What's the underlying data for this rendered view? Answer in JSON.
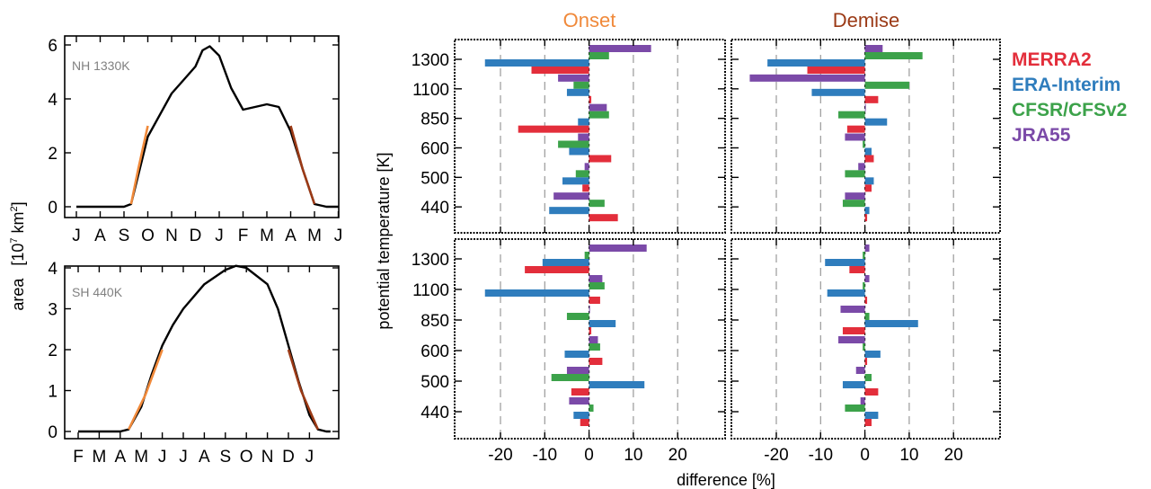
{
  "chart_data": [
    {
      "type": "line",
      "panel": "top-left",
      "annotation": "NH 1330K",
      "xticks": [
        "J",
        "A",
        "S",
        "O",
        "N",
        "D",
        "J",
        "F",
        "M",
        "A",
        "M",
        "J"
      ],
      "ylim": [
        0,
        6
      ],
      "yticks": [
        0,
        2,
        4,
        6
      ],
      "series": [
        {
          "role": "area",
          "color": "#000000",
          "x": [
            0,
            1,
            2,
            2.3,
            3,
            4,
            4.5,
            5,
            5.3,
            5.6,
            6,
            6.5,
            7,
            7.5,
            8,
            8.5,
            9,
            9.5,
            10,
            10.5,
            11
          ],
          "y": [
            0,
            0,
            0,
            0.1,
            2.6,
            4.2,
            4.7,
            5.2,
            5.8,
            5.95,
            5.6,
            4.4,
            3.6,
            3.7,
            3.8,
            3.7,
            2.8,
            1.4,
            0.1,
            0,
            0
          ]
        },
        {
          "role": "onset",
          "color": "#f0893a",
          "x": [
            2.3,
            2.6,
            3
          ],
          "y": [
            0.1,
            1.4,
            3.0
          ]
        },
        {
          "role": "demise",
          "color": "#9b3a16",
          "x": [
            9,
            9.5,
            10
          ],
          "y": [
            3.0,
            1.4,
            0.1
          ]
        }
      ]
    },
    {
      "type": "line",
      "panel": "bottom-left",
      "annotation": "SH 440K",
      "xticks": [
        "F",
        "M",
        "A",
        "M",
        "J",
        "J",
        "A",
        "S",
        "O",
        "N",
        "D",
        "J"
      ],
      "ylim": [
        0,
        4
      ],
      "yticks": [
        0,
        1,
        2,
        3,
        4
      ],
      "series": [
        {
          "role": "area",
          "color": "#000000",
          "x": [
            0,
            1,
            2,
            2.4,
            3,
            3.5,
            4,
            4.5,
            5,
            6,
            7,
            7.5,
            8,
            9,
            9.5,
            10,
            10.5,
            11,
            11.4,
            11.8,
            12
          ],
          "y": [
            0,
            0,
            0,
            0.05,
            0.6,
            1.4,
            2.1,
            2.6,
            3.0,
            3.6,
            3.95,
            4.05,
            4.0,
            3.6,
            3.0,
            2.1,
            1.2,
            0.4,
            0.05,
            0,
            0
          ]
        },
        {
          "role": "onset",
          "color": "#f0893a",
          "x": [
            2.4,
            3.2,
            4
          ],
          "y": [
            0.05,
            0.9,
            2.0
          ]
        },
        {
          "role": "demise",
          "color": "#9b3a16",
          "x": [
            10,
            10.6,
            11.4
          ],
          "y": [
            2.0,
            1.0,
            0.05
          ]
        }
      ]
    },
    {
      "type": "bar",
      "orientation": "horizontal",
      "grid": [
        {
          "panel": "onset-top",
          "values": {
            "1300": [
              -13,
              -23.5,
              4.5,
              14
            ],
            "1100": [
              0.5,
              -5,
              -3.5,
              -7
            ],
            "850": [
              -16,
              -2.5,
              4.5,
              4
            ],
            "600": [
              5,
              -4.5,
              -7,
              -2.5
            ],
            "500": [
              -1.5,
              -6,
              -3,
              -1
            ],
            "440": [
              6.5,
              -9,
              3.5,
              -8
            ]
          }
        },
        {
          "panel": "demise-top",
          "values": {
            "1300": [
              -13,
              -22,
              13,
              4
            ],
            "1100": [
              3,
              -12,
              10,
              -26
            ],
            "850": [
              -4,
              5,
              -6,
              0
            ],
            "600": [
              2,
              1.5,
              -0.5,
              -4.5
            ],
            "500": [
              1.5,
              2,
              -4.5,
              -1.5
            ],
            "440": [
              0.5,
              1,
              -5,
              -4.5
            ]
          }
        },
        {
          "panel": "onset-bottom",
          "values": {
            "1300": [
              -14.5,
              -10.5,
              -1,
              13
            ],
            "1100": [
              2.5,
              -23.5,
              3.5,
              3
            ],
            "850": [
              0.5,
              6,
              -5,
              0
            ],
            "600": [
              3,
              -5.5,
              2.5,
              2
            ],
            "500": [
              -4,
              12.5,
              -8.5,
              -5
            ],
            "440": [
              -2,
              -3.5,
              1,
              -4.5
            ]
          }
        },
        {
          "panel": "demise-bottom",
          "values": {
            "1300": [
              -3.5,
              -9,
              -0.5,
              1
            ],
            "1100": [
              0.5,
              -8.5,
              -0.5,
              1
            ],
            "850": [
              -5,
              12,
              1,
              -5.5
            ],
            "600": [
              0.5,
              3.5,
              -0.5,
              -6
            ],
            "500": [
              3,
              -5,
              1.5,
              -2
            ],
            "440": [
              1.5,
              3,
              -4.5,
              -1
            ]
          }
        }
      ],
      "series_order": [
        "MERRA2",
        "ERA-Interim",
        "CFSR/CFSv2",
        "JRA55"
      ]
    }
  ],
  "labels": {
    "onset_title": "Onset",
    "demise_title": "Demise",
    "left_ylabel": "area",
    "left_yunit": "[10",
    "left_yunit_exp1": "7",
    "left_yunit_mid": " km",
    "left_yunit_exp2": "2",
    "left_yunit_end": "]",
    "right_ylabel": "potential temperature [K]",
    "xlabel": "difference [%]",
    "theta_ticks": [
      "1300",
      "1100",
      "850",
      "600",
      "500",
      "440"
    ],
    "diff_ticks": [
      "-20",
      "-10",
      "0",
      "10",
      "20"
    ],
    "diff_values": [
      -20,
      -10,
      0,
      10,
      20
    ]
  },
  "legend": [
    {
      "name": "MERRA2",
      "color": "#e32e3b"
    },
    {
      "name": "ERA-Interim",
      "color": "#2f7dbd"
    },
    {
      "name": "CFSR/CFSv2",
      "color": "#3ca24a"
    },
    {
      "name": "JRA55",
      "color": "#7b4aa8"
    }
  ],
  "colors": {
    "onset": "#f0893a",
    "demise": "#9b3a16"
  }
}
